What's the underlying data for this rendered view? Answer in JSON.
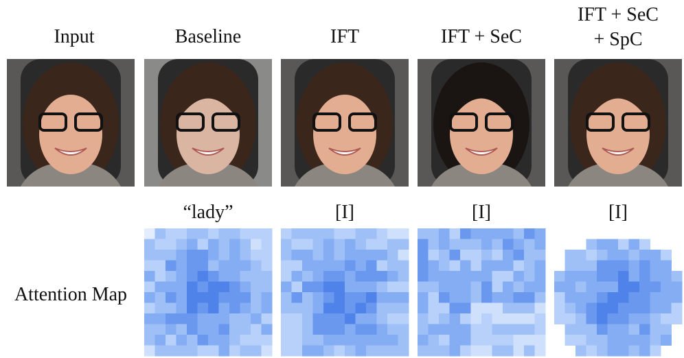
{
  "columns": [
    {
      "title": "Input"
    },
    {
      "title": "Baseline"
    },
    {
      "title": "IFT"
    },
    {
      "title": "IFT + SeC"
    },
    {
      "title_lines": [
        "IFT + SeC",
        "+ SpC"
      ]
    }
  ],
  "attention_row": {
    "label": "Attention Map",
    "tokens": [
      "“lady”",
      "[I]",
      "[I]",
      "[I]"
    ]
  }
}
